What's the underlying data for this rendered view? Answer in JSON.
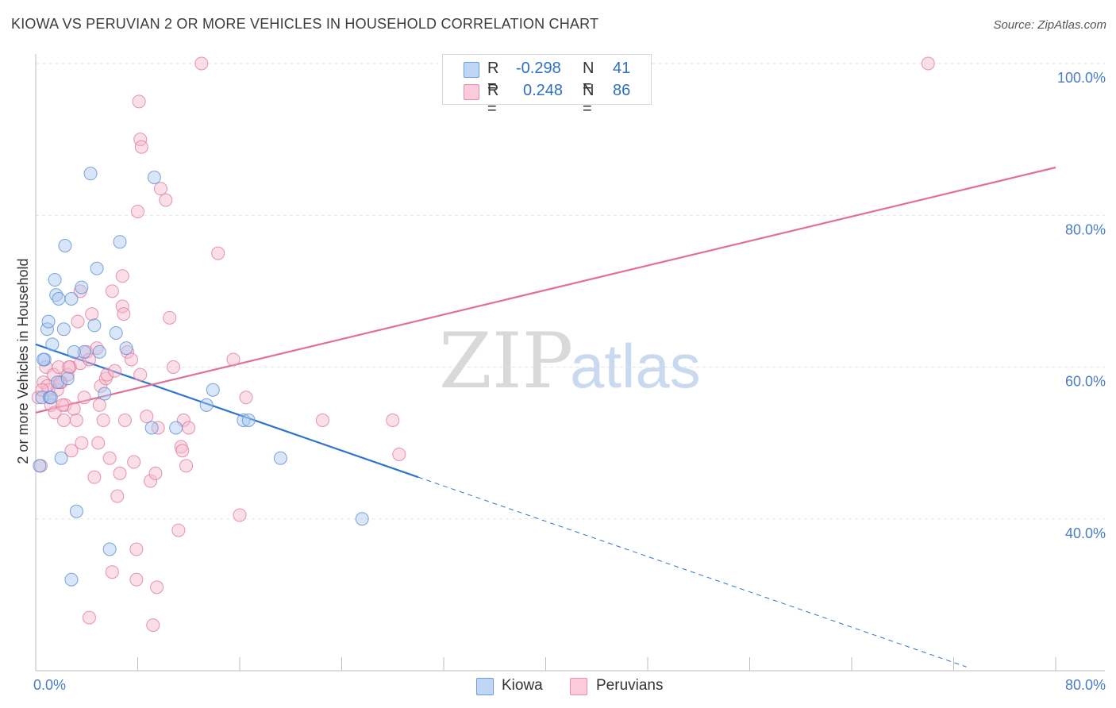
{
  "title": "KIOWA VS PERUVIAN 2 OR MORE VEHICLES IN HOUSEHOLD CORRELATION CHART",
  "source": "Source: ZipAtlas.com",
  "watermark": {
    "zip": "ZIP",
    "atlas": "atlas"
  },
  "colors": {
    "kiowa_fill": "#a8c8f0",
    "kiowa_stroke": "#5b8fd6",
    "kiowa_line": "#2f72d0",
    "peru_fill": "#f7b8cc",
    "peru_stroke": "#e07a9c",
    "peru_line": "#e0709a",
    "axis_label": "#4a7cc7",
    "grid": "#e3e3e3"
  },
  "legend": {
    "kiowa": {
      "r_label": "R =",
      "r_value": "-0.298",
      "n_label": "N =",
      "n_value": "41"
    },
    "peru": {
      "r_label": "R =",
      "r_value": "0.248",
      "n_label": "N =",
      "n_value": "86"
    }
  },
  "chart_data": {
    "type": "scatter",
    "title": "KIOWA VS PERUVIAN 2 OR MORE VEHICLES IN HOUSEHOLD CORRELATION CHART",
    "xlabel": "",
    "ylabel": "2 or more Vehicles in Household",
    "xlim": [
      0,
      80
    ],
    "ylim": [
      20,
      100
    ],
    "x_tick_labels": [
      "0.0%",
      "80.0%"
    ],
    "y_ticks": [
      40,
      60,
      80,
      100
    ],
    "y_tick_labels": [
      "40.0%",
      "60.0%",
      "80.0%",
      "100.0%"
    ],
    "grid": true,
    "legend_position": "top-center",
    "series": [
      {
        "name": "Kiowa",
        "trend": {
          "x": [
            0,
            30
          ],
          "y": [
            63.0,
            45.5
          ],
          "dashed_to": [
            73,
            20.5
          ]
        },
        "points": [
          [
            0.3,
            47
          ],
          [
            0.5,
            56
          ],
          [
            0.7,
            61
          ],
          [
            0.9,
            65
          ],
          [
            1.0,
            66
          ],
          [
            1.1,
            56
          ],
          [
            1.3,
            63
          ],
          [
            1.5,
            71.5
          ],
          [
            1.6,
            69.5
          ],
          [
            1.7,
            58
          ],
          [
            1.8,
            69
          ],
          [
            2.0,
            48
          ],
          [
            2.2,
            65
          ],
          [
            2.3,
            76
          ],
          [
            2.5,
            58.5
          ],
          [
            2.8,
            69
          ],
          [
            3.2,
            41
          ],
          [
            3.6,
            70.5
          ],
          [
            3.8,
            62
          ],
          [
            4.3,
            85.5
          ],
          [
            4.6,
            65.5
          ],
          [
            4.8,
            73
          ],
          [
            5.0,
            62
          ],
          [
            5.4,
            56.5
          ],
          [
            5.8,
            36
          ],
          [
            6.3,
            64.5
          ],
          [
            6.6,
            76.5
          ],
          [
            7.1,
            62.5
          ],
          [
            9.1,
            52
          ],
          [
            9.3,
            85
          ],
          [
            11.0,
            52
          ],
          [
            13.4,
            55
          ],
          [
            13.9,
            57
          ],
          [
            16.3,
            53
          ],
          [
            16.7,
            53
          ],
          [
            19.2,
            48
          ],
          [
            25.6,
            40
          ],
          [
            2.8,
            32
          ],
          [
            0.6,
            61
          ],
          [
            1.2,
            56
          ],
          [
            3.0,
            62
          ]
        ]
      },
      {
        "name": "Peruvians",
        "trend": {
          "x": [
            0,
            80
          ],
          "y": [
            54.0,
            86.3
          ]
        },
        "points": [
          [
            0.2,
            56
          ],
          [
            0.4,
            47
          ],
          [
            0.6,
            58
          ],
          [
            0.8,
            60
          ],
          [
            1.0,
            57
          ],
          [
            1.1,
            56
          ],
          [
            1.2,
            55
          ],
          [
            1.4,
            59
          ],
          [
            1.5,
            54
          ],
          [
            1.7,
            57
          ],
          [
            1.8,
            60
          ],
          [
            2.0,
            58
          ],
          [
            2.2,
            53
          ],
          [
            2.3,
            55
          ],
          [
            2.5,
            59
          ],
          [
            2.7,
            60
          ],
          [
            2.8,
            49
          ],
          [
            3.0,
            54.5
          ],
          [
            3.2,
            53
          ],
          [
            3.3,
            66
          ],
          [
            3.5,
            60.5
          ],
          [
            3.6,
            50
          ],
          [
            3.8,
            56
          ],
          [
            4.0,
            62
          ],
          [
            4.2,
            27
          ],
          [
            4.4,
            67
          ],
          [
            4.6,
            45.5
          ],
          [
            4.8,
            62.5
          ],
          [
            4.9,
            50
          ],
          [
            5.1,
            57.5
          ],
          [
            5.3,
            53
          ],
          [
            5.5,
            58.5
          ],
          [
            5.6,
            59
          ],
          [
            5.8,
            48
          ],
          [
            6.0,
            70
          ],
          [
            6.2,
            59.5
          ],
          [
            6.4,
            43
          ],
          [
            6.6,
            46
          ],
          [
            6.8,
            68
          ],
          [
            6.9,
            67
          ],
          [
            7.0,
            53
          ],
          [
            7.2,
            62
          ],
          [
            7.5,
            61
          ],
          [
            7.7,
            47.5
          ],
          [
            7.9,
            36
          ],
          [
            8.0,
            80.5
          ],
          [
            8.1,
            95
          ],
          [
            8.2,
            90
          ],
          [
            8.3,
            89
          ],
          [
            8.7,
            53.5
          ],
          [
            9.0,
            45
          ],
          [
            9.2,
            26
          ],
          [
            9.4,
            46
          ],
          [
            9.6,
            52
          ],
          [
            9.8,
            83.5
          ],
          [
            10.2,
            82
          ],
          [
            10.5,
            66.5
          ],
          [
            10.8,
            60
          ],
          [
            11.2,
            38.5
          ],
          [
            11.4,
            49.5
          ],
          [
            11.6,
            53
          ],
          [
            11.8,
            47
          ],
          [
            12.0,
            52
          ],
          [
            13.0,
            100
          ],
          [
            14.3,
            75
          ],
          [
            15.5,
            61
          ],
          [
            16.0,
            40.5
          ],
          [
            16.5,
            56
          ],
          [
            22.5,
            53
          ],
          [
            28.0,
            53
          ],
          [
            28.5,
            48.5
          ],
          [
            70,
            100
          ],
          [
            3.5,
            70
          ],
          [
            1.9,
            58
          ],
          [
            5.0,
            55
          ],
          [
            6.0,
            33
          ],
          [
            7.9,
            32
          ],
          [
            9.5,
            31
          ],
          [
            11.5,
            49
          ],
          [
            0.9,
            57.5
          ],
          [
            2.1,
            55
          ],
          [
            4.2,
            61
          ],
          [
            6.8,
            72
          ],
          [
            8.2,
            59
          ],
          [
            0.5,
            57
          ],
          [
            2.6,
            60
          ]
        ]
      }
    ]
  }
}
